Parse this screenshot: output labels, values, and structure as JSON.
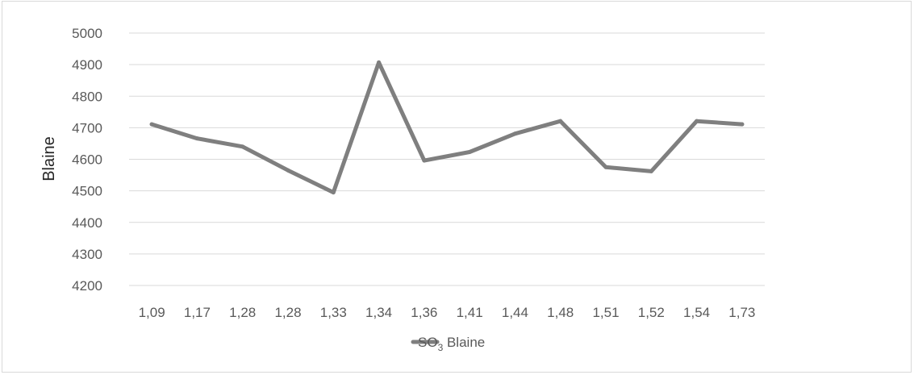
{
  "chart_data": {
    "type": "line",
    "categories": [
      "1,09",
      "1,17",
      "1,28",
      "1,28",
      "1,33",
      "1,34",
      "1,36",
      "1,41",
      "1,44",
      "1,48",
      "1,51",
      "1,52",
      "1,54",
      "1,73"
    ],
    "series": [
      {
        "name": "SO3 Blaine",
        "values": [
          4711,
          4666,
          4640,
          4565,
          4495,
          4907,
          4596,
          4623,
          4681,
          4721,
          4575,
          4562,
          4721,
          4711
        ]
      }
    ],
    "ylabel": "Blaine",
    "xlabel": "",
    "ylim": [
      4200,
      5000
    ],
    "yticks": [
      4200,
      4300,
      4400,
      4500,
      4600,
      4700,
      4800,
      4900,
      5000
    ],
    "grid": true,
    "legend_position": "bottom",
    "legend": {
      "prefix": "SO",
      "subscript": "3",
      "suffix": " Blaine"
    },
    "colors": {
      "series": "#7f7f7f",
      "grid": "#d9d9d9",
      "axis_text": "#595959",
      "title_text": "#262626"
    }
  }
}
